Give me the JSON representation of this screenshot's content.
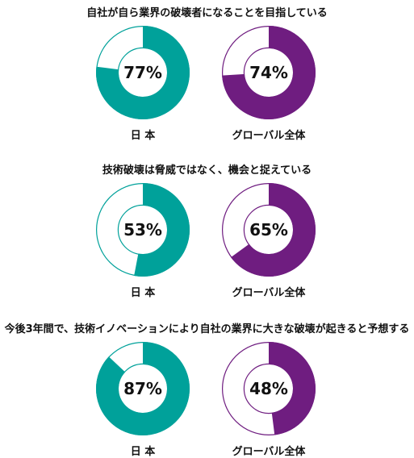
{
  "colors": {
    "japan": "#00A19A",
    "global": "#6F1D80",
    "background": "#ffffff"
  },
  "chart_data": [
    {
      "type": "pie",
      "title": "自社が自ら業界の破壊者になることを目指している",
      "series": [
        {
          "name": "日 本",
          "value": 77,
          "label": "77%"
        },
        {
          "name": "グローバル全体",
          "value": 74,
          "label": "74%"
        }
      ]
    },
    {
      "type": "pie",
      "title": "技術破壊は脅威ではなく、機会と捉えている",
      "series": [
        {
          "name": "日 本",
          "value": 53,
          "label": "53%"
        },
        {
          "name": "グローバル全体",
          "value": 65,
          "label": "65%"
        }
      ]
    },
    {
      "type": "pie",
      "title": "今後3年間で、技術イノベーションにより自社の業界に大きな破壊が起きると予想する",
      "series": [
        {
          "name": "日 本",
          "value": 87,
          "label": "87%"
        },
        {
          "name": "グローバル全体",
          "value": 48,
          "label": "48%"
        }
      ]
    }
  ]
}
